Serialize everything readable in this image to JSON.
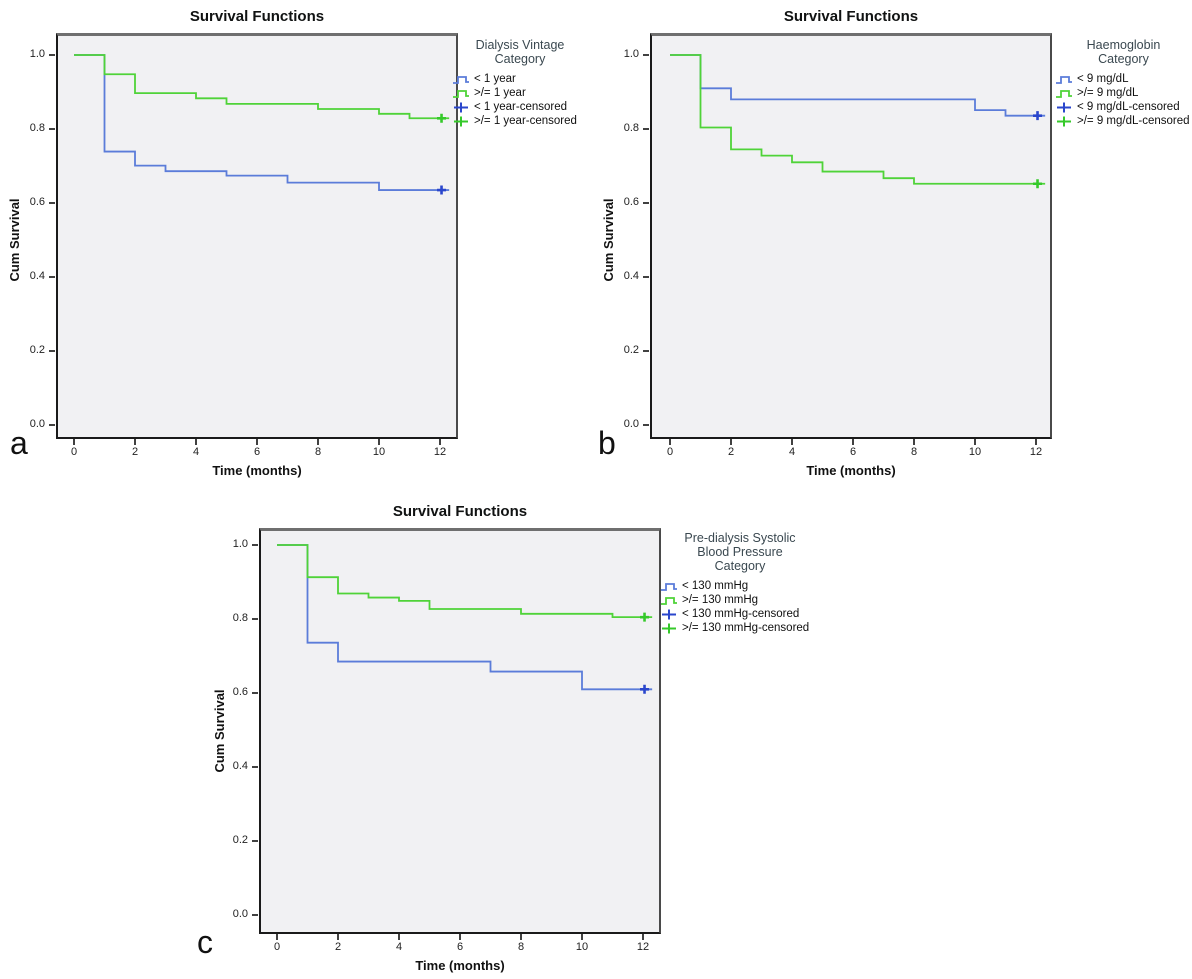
{
  "figure": {
    "background": "#ffffff"
  },
  "colors": {
    "blue_line": "#5b7cd9",
    "blue_marker": "#2a46cc",
    "green_line": "#4fd338",
    "green_marker": "#35c92a",
    "plot_bg": "#f1f1f3",
    "frame_top_border": "#6f6f6f"
  },
  "chart_data": [
    {
      "type": "line",
      "step": true,
      "panel_letter": "a",
      "title": "Survival Functions",
      "xlabel": "Time (months)",
      "ylabel": "Cum Survival",
      "xlim": [
        0,
        12
      ],
      "ylim": [
        0.0,
        1.0
      ],
      "xticks": [
        0,
        2,
        4,
        6,
        8,
        10,
        12
      ],
      "yticks": [
        "0.0",
        "0.2",
        "0.4",
        "0.6",
        "0.8",
        "1.0"
      ],
      "grid": false,
      "legend": {
        "position": "right",
        "title": "Dialysis Vintage\nCategory",
        "items": [
          {
            "label": "< 1 year",
            "color": "#5b7cd9",
            "glyph": "step-line"
          },
          {
            "label": ">/= 1 year",
            "color": "#4fd338",
            "glyph": "step-line"
          },
          {
            "label": "< 1 year-censored",
            "color": "#2a46cc",
            "glyph": "plus"
          },
          {
            "label": ">/= 1 year-censored",
            "color": "#35c92a",
            "glyph": "plus"
          }
        ]
      },
      "series": [
        {
          "name": "< 1 year",
          "color": "#5b7cd9",
          "marker_color": "#2a46cc",
          "start": [
            0,
            1.0
          ],
          "steps": [
            [
              1,
              0.739
            ],
            [
              2,
              0.701
            ],
            [
              3,
              0.686
            ],
            [
              5,
              0.674
            ],
            [
              7,
              0.655
            ],
            [
              10,
              0.635
            ]
          ],
          "censored": [
            12,
            0.635
          ]
        },
        {
          "name": ">/= 1 year",
          "color": "#4fd338",
          "marker_color": "#35c92a",
          "start": [
            0,
            1.0
          ],
          "steps": [
            [
              1,
              0.948
            ],
            [
              2,
              0.897
            ],
            [
              4,
              0.883
            ],
            [
              5,
              0.868
            ],
            [
              8,
              0.854
            ],
            [
              10,
              0.841
            ],
            [
              11,
              0.829
            ]
          ],
          "censored": [
            12,
            0.829
          ]
        }
      ]
    },
    {
      "type": "line",
      "step": true,
      "panel_letter": "b",
      "title": "Survival Functions",
      "xlabel": "Time (months)",
      "ylabel": "Cum Survival",
      "xlim": [
        0,
        12
      ],
      "ylim": [
        0.0,
        1.0
      ],
      "xticks": [
        0,
        2,
        4,
        6,
        8,
        10,
        12
      ],
      "yticks": [
        "0.0",
        "0.2",
        "0.4",
        "0.6",
        "0.8",
        "1.0"
      ],
      "grid": false,
      "legend": {
        "position": "right",
        "title": "Haemoglobin\nCategory",
        "items": [
          {
            "label": "< 9 mg/dL",
            "color": "#5b7cd9",
            "glyph": "step-line"
          },
          {
            "label": ">/= 9 mg/dL",
            "color": "#4fd338",
            "glyph": "step-line"
          },
          {
            "label": "< 9 mg/dL-censored",
            "color": "#2a46cc",
            "glyph": "plus"
          },
          {
            "label": ">/= 9 mg/dL-censored",
            "color": "#35c92a",
            "glyph": "plus"
          }
        ]
      },
      "series": [
        {
          "name": "< 9 mg/dL",
          "color": "#5b7cd9",
          "marker_color": "#2a46cc",
          "start": [
            0,
            1.0
          ],
          "steps": [
            [
              1,
              0.91
            ],
            [
              2,
              0.88
            ],
            [
              10,
              0.851
            ],
            [
              11,
              0.836
            ]
          ],
          "censored": [
            12,
            0.836
          ]
        },
        {
          "name": ">/= 9 mg/dL",
          "color": "#4fd338",
          "marker_color": "#35c92a",
          "start": [
            0,
            1.0
          ],
          "steps": [
            [
              1,
              0.804
            ],
            [
              2,
              0.745
            ],
            [
              3,
              0.728
            ],
            [
              4,
              0.71
            ],
            [
              5,
              0.685
            ],
            [
              7,
              0.667
            ],
            [
              8,
              0.652
            ]
          ],
          "censored": [
            12,
            0.652
          ]
        }
      ]
    },
    {
      "type": "line",
      "step": true,
      "panel_letter": "c",
      "title": "Survival Functions",
      "xlabel": "Time (months)",
      "ylabel": "Cum Survival",
      "xlim": [
        0,
        12
      ],
      "ylim": [
        0.0,
        1.0
      ],
      "xticks": [
        0,
        2,
        4,
        6,
        8,
        10,
        12
      ],
      "yticks": [
        "0.0",
        "0.2",
        "0.4",
        "0.6",
        "0.8",
        "1.0"
      ],
      "grid": false,
      "legend": {
        "position": "right",
        "title": "Pre-dialysis Systolic\nBlood Pressure\nCategory",
        "items": [
          {
            "label": "< 130 mmHg",
            "color": "#5b7cd9",
            "glyph": "step-line"
          },
          {
            "label": ">/= 130 mmHg",
            "color": "#4fd338",
            "glyph": "step-line"
          },
          {
            "label": "< 130 mmHg-censored",
            "color": "#2a46cc",
            "glyph": "plus"
          },
          {
            "label": ">/= 130 mmHg-censored",
            "color": "#35c92a",
            "glyph": "plus"
          }
        ]
      },
      "series": [
        {
          "name": "< 130 mmHg",
          "color": "#5b7cd9",
          "marker_color": "#2a46cc",
          "start": [
            0,
            1.0
          ],
          "steps": [
            [
              1,
              0.736
            ],
            [
              2,
              0.685
            ],
            [
              7,
              0.658
            ],
            [
              10,
              0.61
            ]
          ],
          "censored": [
            12,
            0.61
          ]
        },
        {
          "name": ">/= 130 mmHg",
          "color": "#4fd338",
          "marker_color": "#35c92a",
          "start": [
            0,
            1.0
          ],
          "steps": [
            [
              1,
              0.913
            ],
            [
              2,
              0.869
            ],
            [
              3,
              0.858
            ],
            [
              4,
              0.849
            ],
            [
              5,
              0.827
            ],
            [
              8,
              0.814
            ],
            [
              11,
              0.805
            ]
          ],
          "censored": [
            12,
            0.805
          ]
        }
      ]
    }
  ]
}
